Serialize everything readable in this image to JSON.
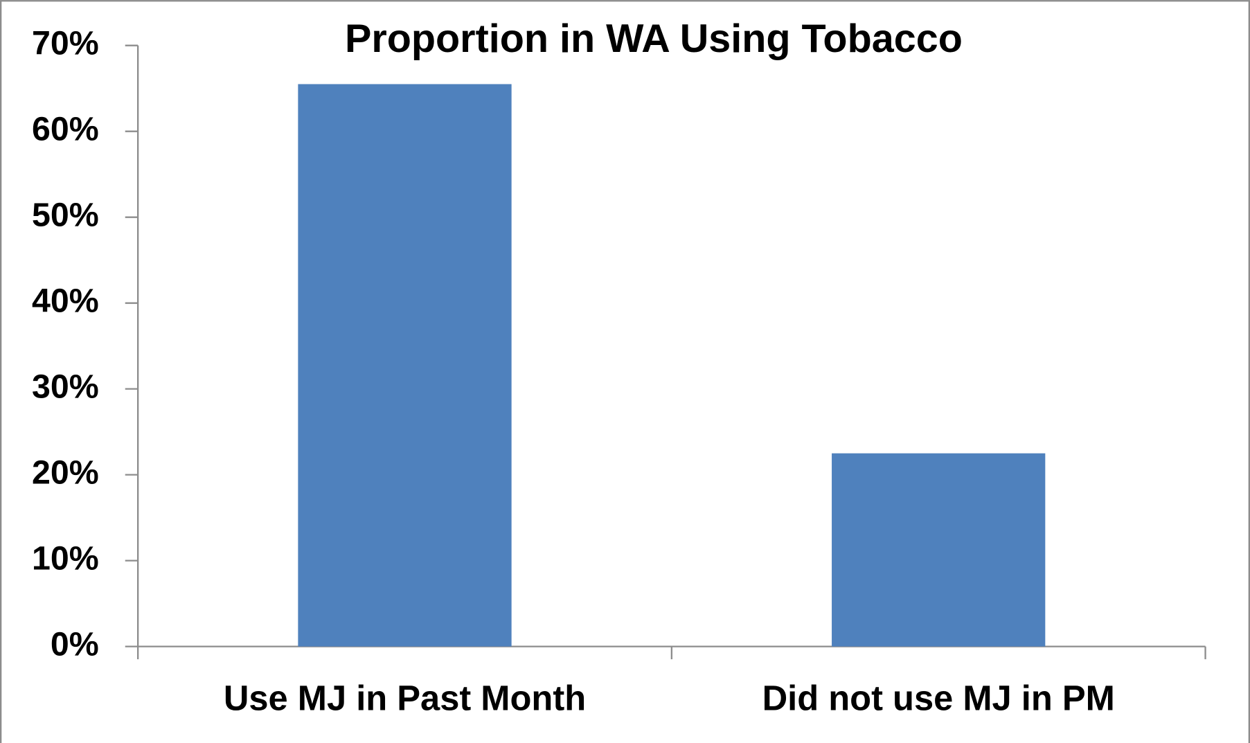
{
  "chart_data": {
    "type": "bar",
    "title": "Proportion in WA Using Tobacco",
    "categories": [
      "Use MJ in Past Month",
      "Did not use MJ in PM"
    ],
    "values": [
      65.5,
      22.5
    ],
    "color": "#4f81bd",
    "ylim": [
      0,
      70
    ],
    "yticks": [
      {
        "value": 0,
        "label": "0%"
      },
      {
        "value": 10,
        "label": "10%"
      },
      {
        "value": 20,
        "label": "20%"
      },
      {
        "value": 30,
        "label": "30%"
      },
      {
        "value": 40,
        "label": "40%"
      },
      {
        "value": 50,
        "label": "50%"
      },
      {
        "value": 60,
        "label": "60%"
      },
      {
        "value": 70,
        "label": "70%"
      }
    ],
    "grid": false
  }
}
